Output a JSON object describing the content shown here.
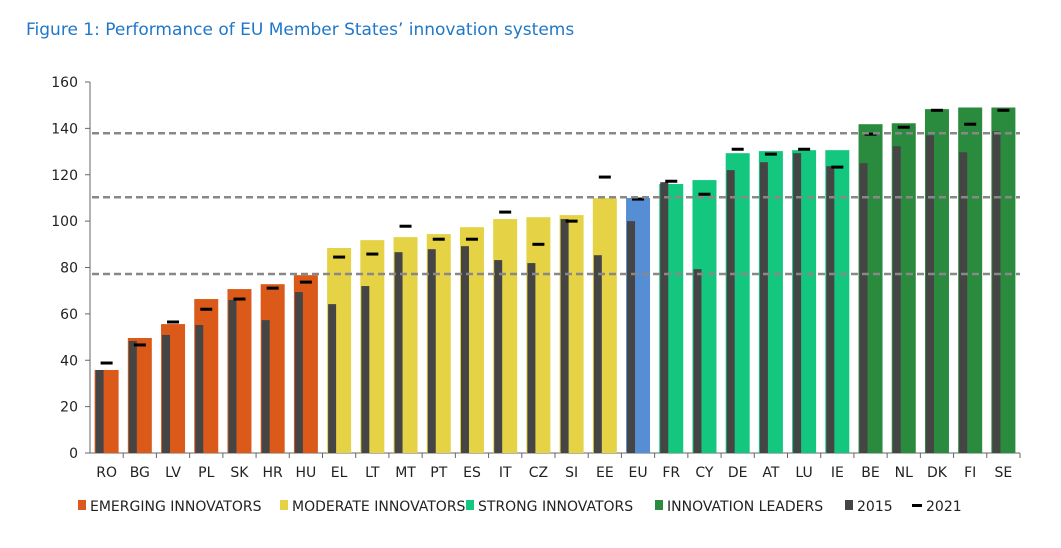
{
  "chart_data": {
    "type": "bar",
    "title": "Figure 1: Performance of EU Member States’ innovation systems",
    "ylim": [
      0,
      160
    ],
    "yticks": [
      0,
      20,
      40,
      60,
      80,
      100,
      120,
      140,
      160
    ],
    "grid": false,
    "legend_placement": "bottom",
    "categories": [
      "RO",
      "BG",
      "LV",
      "PL",
      "SK",
      "HR",
      "HU",
      "EL",
      "LT",
      "MT",
      "PT",
      "ES",
      "IT",
      "CZ",
      "SI",
      "EE",
      "EU",
      "FR",
      "CY",
      "DE",
      "AT",
      "LU",
      "IE",
      "BE",
      "NL",
      "DK",
      "FI",
      "SE"
    ],
    "groups": [
      "emerging",
      "emerging",
      "emerging",
      "emerging",
      "emerging",
      "emerging",
      "emerging",
      "moderate",
      "moderate",
      "moderate",
      "moderate",
      "moderate",
      "moderate",
      "moderate",
      "moderate",
      "moderate",
      "eu",
      "strong",
      "strong",
      "strong",
      "strong",
      "strong",
      "strong",
      "leader",
      "leader",
      "leader",
      "leader",
      "leader"
    ],
    "values": [
      35.8,
      49.6,
      55.6,
      66.4,
      70.7,
      72.8,
      76.7,
      88.4,
      91.8,
      93.1,
      94.4,
      97.4,
      100.9,
      101.7,
      102.6,
      109.9,
      110,
      116,
      117.7,
      129.3,
      130.2,
      130.6,
      130.6,
      141.8,
      142.2,
      148.3,
      149,
      149
    ],
    "series_2015": [
      35.8,
      48.3,
      50.9,
      55.2,
      66,
      57.3,
      69.4,
      64.2,
      72,
      86.6,
      87.9,
      89.2,
      83.2,
      81.9,
      100.9,
      85.3,
      100,
      116.8,
      79.3,
      122,
      125.4,
      129.3,
      123.7,
      125,
      132.3,
      137,
      129.7,
      138.8
    ],
    "series_2021": [
      38.8,
      46.6,
      56.5,
      62,
      66.4,
      71.1,
      73.7,
      84.5,
      85.8,
      97.8,
      92.2,
      92.2,
      103.9,
      90,
      100,
      119,
      109.5,
      117.2,
      111.6,
      131,
      128.9,
      131,
      123.3,
      137.5,
      140.5,
      147.8,
      141.8,
      147.8
    ],
    "threshold_lines": [
      77.2,
      110.3,
      137.9
    ],
    "colors": {
      "emerging": "#dc5a19",
      "moderate": "#e5d245",
      "eu": "#568ed6",
      "strong": "#14c77f",
      "leader": "#2a8a3e",
      "y2015": "#454545",
      "y2021": "#000000",
      "threshold": "#888888"
    },
    "legend": [
      {
        "key": "emerging",
        "label": "EMERGING INNOVATORS"
      },
      {
        "key": "moderate",
        "label": "MODERATE INNOVATORS"
      },
      {
        "key": "strong",
        "label": "STRONG INNOVATORS"
      },
      {
        "key": "leader",
        "label": "INNOVATION LEADERS"
      },
      {
        "key": "y2015",
        "label": "2015"
      },
      {
        "key": "y2021",
        "label": "2021"
      }
    ]
  }
}
